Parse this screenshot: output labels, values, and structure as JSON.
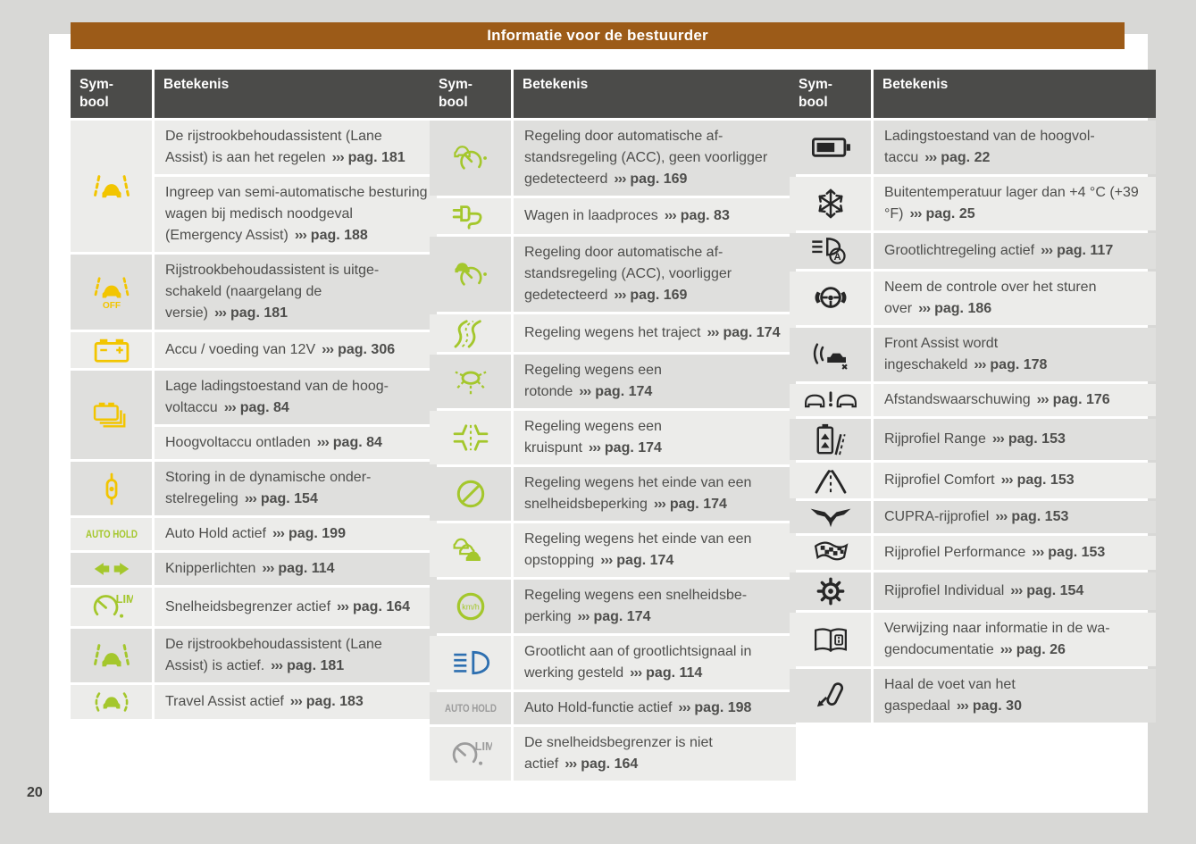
{
  "page": {
    "banner_title": "Informatie voor de bestuurder",
    "page_number": "20"
  },
  "table_headers": {
    "symbol_line1": "Sym-",
    "symbol_line2": "bool",
    "meaning": "Betekenis"
  },
  "cross_ref_symbol": "›››",
  "colors": {
    "outer_bg": "#d8d8d6",
    "page_bg": "#ffffff",
    "banner_bg": "#9c5b18",
    "banner_text": "#ffffff",
    "header_bg": "#4b4b49",
    "header_text": "#ffffff",
    "row_light": "#ececea",
    "row_dark": "#dfdfdd",
    "body_text": "#4e4e4c",
    "icon_yellow": "#f2c500",
    "icon_green": "#a4c72c",
    "icon_blue": "#2d6fb0",
    "icon_gray": "#9c9c9c",
    "icon_black": "#262626"
  },
  "tables": [
    {
      "id": "left",
      "groups": [
        {
          "icon": "lane-assist-icon",
          "color": "yellow",
          "rows": [
            {
              "text": "De rijstrookbehoudassistent (Lane Assist) is aan het regelen",
              "page_ref": "pag. 181",
              "shade": "light"
            },
            {
              "text": "Ingreep van semi-automatische be­sturing wagen bij medisch noodge­val (Emergency Assist)",
              "page_ref": "pag. 188",
              "shade": "light"
            }
          ]
        },
        {
          "icon": "lane-assist-off-icon",
          "color": "yellow",
          "rows": [
            {
              "text": "Rijstrookbehoudassistent is uitge­schakeld (naargelang de versie)",
              "page_ref": "pag. 181",
              "shade": "dark"
            }
          ]
        },
        {
          "icon": "battery-12v-icon",
          "color": "yellow",
          "rows": [
            {
              "text": "Accu / voeding van 12V",
              "page_ref": "pag. 306",
              "shade": "light"
            }
          ]
        },
        {
          "icon": "hv-battery-low-icon",
          "color": "yellow",
          "rows": [
            {
              "text": "Lage ladingstoestand van de hoog­voltaccu",
              "page_ref": "pag. 84",
              "shade": "dark"
            },
            {
              "text": "Hoogvoltaccu ontladen",
              "page_ref": "pag. 84",
              "shade": "light"
            }
          ]
        },
        {
          "icon": "suspension-damper-icon",
          "color": "yellow",
          "rows": [
            {
              "text": "Storing in de dynamische onder­stelregeling",
              "page_ref": "pag. 154",
              "shade": "dark"
            }
          ]
        },
        {
          "icon": "auto-hold-icon",
          "color": "green",
          "rows": [
            {
              "text": "Auto Hold actief",
              "page_ref": "pag. 199",
              "shade": "light"
            }
          ]
        },
        {
          "icon": "turn-signals-icon",
          "color": "green",
          "rows": [
            {
              "text": "Knipperlichten",
              "page_ref": "pag. 114",
              "shade": "dark"
            }
          ]
        },
        {
          "icon": "speed-limiter-icon",
          "color": "green",
          "rows": [
            {
              "text": "Snelheidsbegrenzer actief",
              "page_ref": "pag. 164",
              "shade": "light"
            }
          ]
        },
        {
          "icon": "lane-assist-icon",
          "color": "green",
          "rows": [
            {
              "text": "De rijstrookbehoudassistent (Lane Assist) is actief.",
              "page_ref": "pag. 181",
              "shade": "dark"
            }
          ]
        },
        {
          "icon": "travel-assist-icon",
          "color": "green",
          "rows": [
            {
              "text": "Travel Assist actief",
              "page_ref": "pag. 183",
              "shade": "light"
            }
          ]
        }
      ]
    },
    {
      "id": "middle",
      "groups": [
        {
          "icon": "acc-no-vehicle-icon",
          "color": "green",
          "rows": [
            {
              "text": "Regeling door automatische af­standsregeling (ACC), geen voorlig­ger gedetecteerd",
              "page_ref": "pag. 169",
              "shade": "dark"
            }
          ]
        },
        {
          "icon": "charging-plug-icon",
          "color": "green",
          "rows": [
            {
              "text": "Wagen in laadproces",
              "page_ref": "pag. 83",
              "shade": "light"
            }
          ]
        },
        {
          "icon": "acc-vehicle-icon",
          "color": "green",
          "rows": [
            {
              "text": "Regeling door automatische af­standsregeling (ACC), voorligger gedetecteerd",
              "page_ref": "pag. 169",
              "shade": "dark"
            }
          ]
        },
        {
          "icon": "route-curves-icon",
          "color": "green",
          "rows": [
            {
              "text": "Regeling wegens het traject",
              "page_ref": "pag. 174",
              "shade": "light"
            }
          ]
        },
        {
          "icon": "roundabout-icon",
          "color": "green",
          "rows": [
            {
              "text": "Regeling wegens een rotonde",
              "page_ref": "pag. 174",
              "shade": "dark"
            }
          ]
        },
        {
          "icon": "junction-icon",
          "color": "green",
          "rows": [
            {
              "text": "Regeling wegens een kruispunt",
              "page_ref": "pag. 174",
              "shade": "light"
            }
          ]
        },
        {
          "icon": "end-speed-limit-icon",
          "color": "green",
          "rows": [
            {
              "text": "Regeling wegens het einde van een snelheidsbeperking",
              "page_ref": "pag. 174",
              "shade": "dark"
            }
          ]
        },
        {
          "icon": "traffic-jam-icon",
          "color": "green",
          "rows": [
            {
              "text": "Regeling wegens het einde van een opstopping",
              "page_ref": "pag. 174",
              "shade": "light"
            }
          ]
        },
        {
          "icon": "speed-limit-kmh-icon",
          "color": "green",
          "rows": [
            {
              "text": "Regeling wegens een snelheidsbe­perking",
              "page_ref": "pag. 174",
              "shade": "dark"
            }
          ]
        },
        {
          "icon": "high-beam-icon",
          "color": "blue",
          "rows": [
            {
              "text": "Grootlicht aan of grootlichtsignaal in werking gesteld",
              "page_ref": "pag. 114",
              "shade": "light"
            }
          ]
        },
        {
          "icon": "auto-hold-icon",
          "color": "gray",
          "rows": [
            {
              "text": "Auto Hold-functie actief",
              "page_ref": "pag. 198",
              "shade": "dark"
            }
          ]
        },
        {
          "icon": "speed-limiter-inactive-icon",
          "color": "gray",
          "rows": [
            {
              "text": "De snelheidsbegrenzer is niet actief",
              "page_ref": "pag. 164",
              "shade": "light"
            }
          ]
        }
      ]
    },
    {
      "id": "right",
      "groups": [
        {
          "icon": "hv-battery-charge-icon",
          "color": "black",
          "rows": [
            {
              "text": "Ladingstoestand van de hoogvol­taccu",
              "page_ref": "pag. 22",
              "shade": "dark"
            }
          ]
        },
        {
          "icon": "snowflake-icon",
          "color": "black",
          "rows": [
            {
              "text": "Buitentemperatuur lager dan +4 °C (+39 °F)",
              "page_ref": "pag. 25",
              "shade": "light"
            }
          ]
        },
        {
          "icon": "auto-high-beam-icon",
          "color": "black",
          "rows": [
            {
              "text": "Grootlichtregeling actief",
              "page_ref": "pag. 117",
              "shade": "dark"
            }
          ]
        },
        {
          "icon": "hands-on-steering-icon",
          "color": "black",
          "rows": [
            {
              "text": "Neem de controle over het sturen over",
              "page_ref": "pag. 186",
              "shade": "light"
            }
          ]
        },
        {
          "icon": "front-assist-icon",
          "color": "black",
          "rows": [
            {
              "text": "Front Assist wordt ingeschakeld",
              "page_ref": "pag. 178",
              "shade": "dark"
            }
          ]
        },
        {
          "icon": "distance-warning-icon",
          "color": "black",
          "rows": [
            {
              "text": "Afstandswaarschuwing",
              "page_ref": "pag. 176",
              "shade": "light"
            }
          ]
        },
        {
          "icon": "profile-range-icon",
          "color": "black",
          "rows": [
            {
              "text": "Rijprofiel Range",
              "page_ref": "pag. 153",
              "shade": "dark"
            }
          ]
        },
        {
          "icon": "profile-comfort-icon",
          "color": "black",
          "rows": [
            {
              "text": "Rijprofiel Comfort",
              "page_ref": "pag. 153",
              "shade": "light"
            }
          ]
        },
        {
          "icon": "cupra-logo-icon",
          "color": "black",
          "rows": [
            {
              "text": "CUPRA-rijprofiel",
              "page_ref": "pag. 153",
              "shade": "dark"
            }
          ]
        },
        {
          "icon": "profile-performance-icon",
          "color": "black",
          "rows": [
            {
              "text": "Rijprofiel Performance",
              "page_ref": "pag. 153",
              "shade": "light"
            }
          ]
        },
        {
          "icon": "profile-individual-icon",
          "color": "black",
          "rows": [
            {
              "text": "Rijprofiel Individual",
              "page_ref": "pag. 154",
              "shade": "dark"
            }
          ]
        },
        {
          "icon": "vehicle-documentation-icon",
          "color": "black",
          "rows": [
            {
              "text": "Verwijzing naar informatie in de wa­gendocumentatie",
              "page_ref": "pag. 26",
              "shade": "light"
            }
          ]
        },
        {
          "icon": "release-accelerator-icon",
          "color": "black",
          "rows": [
            {
              "text": "Haal de voet van het gaspedaal",
              "page_ref": "pag. 30",
              "shade": "dark"
            }
          ]
        }
      ]
    }
  ]
}
